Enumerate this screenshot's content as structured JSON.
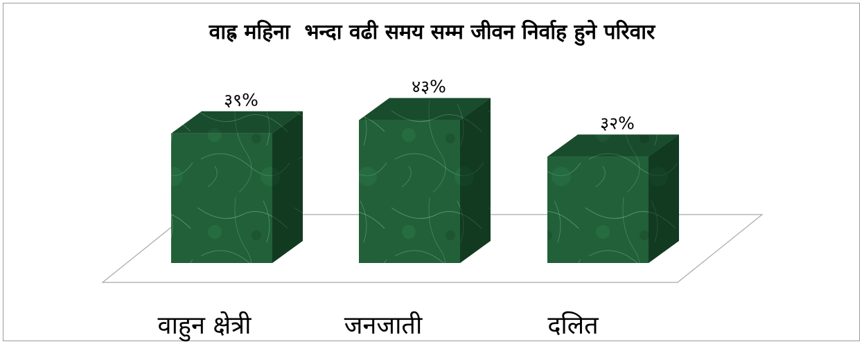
{
  "chart_data": {
    "type": "bar",
    "title": "वाह्र महिना  भन्दा वढी समय सम्म जीवन निर्वाह हुने परिवार",
    "categories": [
      "वाहुन क्षेत्री",
      "जनजाती",
      "दलित"
    ],
    "values": [
      39,
      43,
      32
    ],
    "value_labels": [
      "३९%",
      "४३%",
      "३२%"
    ],
    "unit": "%",
    "ylim": [
      0,
      50
    ],
    "grid": false,
    "legend": "none",
    "style": "3d-column",
    "colors": {
      "front": "#1f5c36",
      "front_light": "#2e7a4a",
      "top": "#2b6a40",
      "side": "#123b22",
      "vein": "#8ccaa0",
      "floor_stroke": "#a8a8a8",
      "frame": "#9a9a9a"
    }
  }
}
